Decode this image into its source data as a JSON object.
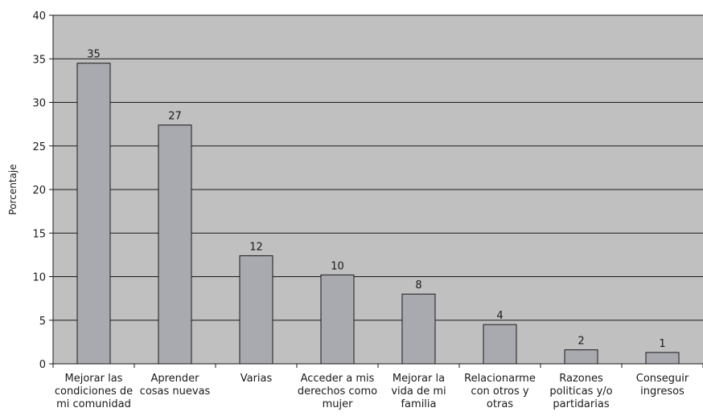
{
  "chart_data": {
    "type": "bar",
    "title": "",
    "xlabel": "",
    "ylabel": "Porcentaje",
    "ylim": [
      0,
      40
    ],
    "yticks": [
      0,
      5,
      10,
      15,
      20,
      25,
      30,
      35,
      40
    ],
    "grid": true,
    "legend": "none",
    "categories": [
      [
        "Mejorar las",
        "condiciones de",
        "mi comunidad"
      ],
      [
        "Aprender",
        "cosas nuevas"
      ],
      [
        "Varias"
      ],
      [
        "Acceder a mis",
        "derechos como",
        "mujer"
      ],
      [
        "Mejorar la",
        "vida de mi",
        "familia"
      ],
      [
        "Relacionarme",
        "con otros y",
        "otras"
      ],
      [
        "Razones",
        "politicas y/o",
        "partidarias"
      ],
      [
        "Conseguir",
        "ingresos"
      ]
    ],
    "values": [
      34.5,
      27.4,
      12.4,
      10.2,
      8.0,
      4.5,
      1.6,
      1.3
    ],
    "data_labels": [
      "35",
      "27",
      "12",
      "10",
      "8",
      "4",
      "2",
      "1"
    ],
    "colors": {
      "plot_background": "#c0c0c0",
      "bar_fill": "#a9a9b0",
      "bar_stroke": "#1a1a1a",
      "grid": "#1a1a1a"
    }
  }
}
